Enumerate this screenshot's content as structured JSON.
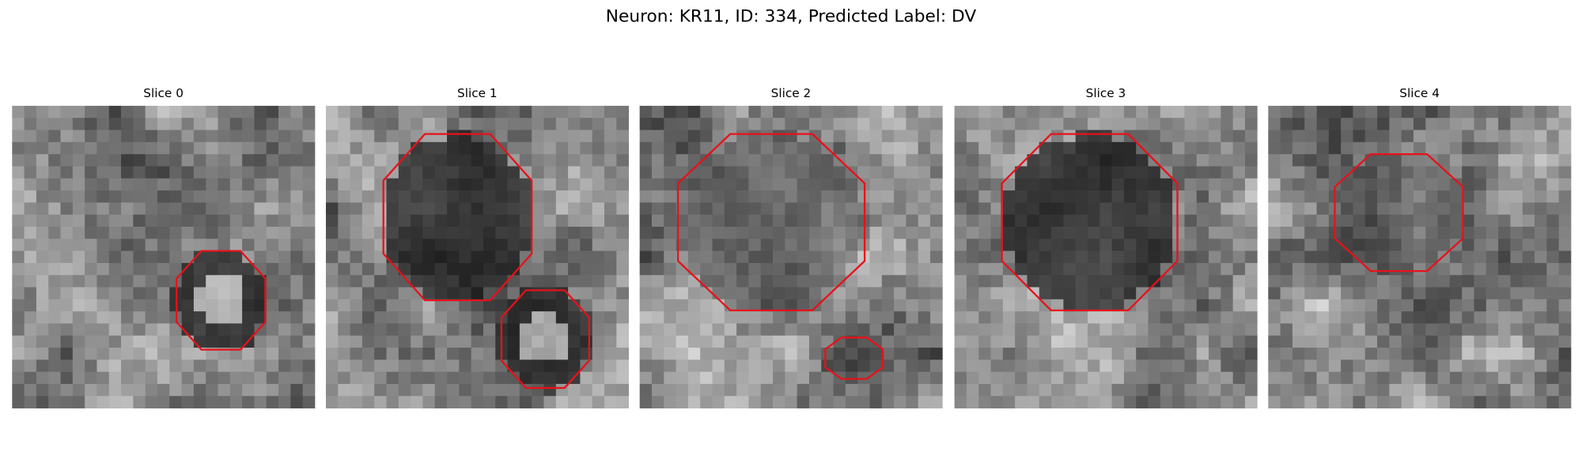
{
  "title": "Neuron: KR11, ID: 334, Predicted Label: DV",
  "panels": [
    {
      "title": "Slice 0"
    },
    {
      "title": "Slice 1"
    },
    {
      "title": "Slice 2"
    },
    {
      "title": "Slice 3"
    },
    {
      "title": "Slice 4"
    }
  ]
}
